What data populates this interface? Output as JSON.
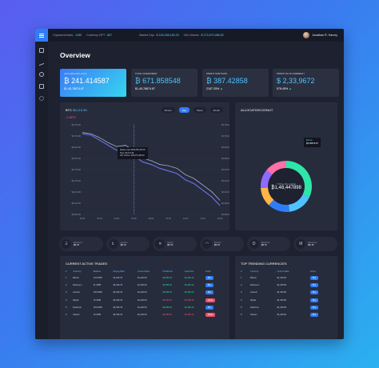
{
  "topbar": {
    "cryptocurrencies_label": "Crytocurrencies",
    "cryptocurrencies_value": "1280",
    "currency_label": "Currecny OPT",
    "currency_value": "857",
    "market_cap_label": "Market Cap",
    "market_cap_value": "$ 159,458,165.25",
    "volume_label": "24h Volume",
    "volume_value": "$ 272,679,486.50",
    "user_name": "Jonathan R. Harvey"
  },
  "sidebar": {
    "icons": [
      "dashboard-icon",
      "chart-icon",
      "pie-icon",
      "wallet-icon",
      "settings-icon"
    ]
  },
  "page": {
    "title": "Overview"
  },
  "cards": [
    {
      "label": "AVAILABLE BALANCE",
      "value": "₿ 241.414587",
      "sub": "$1,45,78874.87"
    },
    {
      "label": "TOTAL INVESTMENT",
      "value": "₿ 671.858548",
      "sub": "$1,45,78874.87"
    },
    {
      "label": "PROFIT IN BITCOIN",
      "value": "₿ 387.42858",
      "sub": "2187.25%"
    },
    {
      "label": "PROFIT IN US CURRENCY",
      "value": "$ 2,33,9672",
      "sub": "578.45%"
    }
  ],
  "btc_panel": {
    "coin": "BTC",
    "price": "$6,115.38",
    "change": "-2.487%",
    "tabs": [
      "Minute",
      "Day",
      "Week",
      "Month"
    ],
    "active_tab": "Day",
    "tooltip": {
      "l1": "Market Cap: $158,859,165.45",
      "l2": "Price: $6,115.38",
      "l3": "24h Volume: $35,679,486.50"
    },
    "y_ticks": [
      "$6,760.00",
      "$6,700.00",
      "$6,540.00",
      "$6,450.00",
      "$6,375.00",
      "$6,276.00",
      "$6,210.00",
      "$6,150.00",
      "$6,090.00"
    ],
    "x_ticks": [
      "00:00",
      "01:00",
      "02:00",
      "03:00",
      "04:00",
      "05:00",
      "06:00",
      "07:00",
      "08:00",
      "09:00",
      "10:00",
      "11:00",
      "12:00",
      "13:00",
      "14:00",
      "15:00",
      "16:00"
    ]
  },
  "chart_data": {
    "type": "line",
    "title": "BTC",
    "x": [
      "00:00",
      "01:00",
      "02:00",
      "03:00",
      "04:00",
      "05:00",
      "06:00",
      "07:00",
      "08:00",
      "09:00",
      "10:00",
      "11:00",
      "12:00",
      "13:00",
      "14:00",
      "15:00",
      "16:00"
    ],
    "series": [
      {
        "values": [
          6690,
          6680,
          6640,
          6600,
          6560,
          6580,
          6520,
          6470,
          6450,
          6420,
          6400,
          6380,
          6330,
          6300,
          6250,
          6200,
          6130
        ]
      },
      {
        "values": [
          6700,
          6690,
          6660,
          6620,
          6590,
          6600,
          6560,
          6500,
          6480,
          6450,
          6440,
          6420,
          6370,
          6340,
          6290,
          6240,
          6170
        ]
      }
    ],
    "ylim": [
      6060,
      6760
    ]
  },
  "donut": {
    "title": "ALLOCATION DONUT",
    "center_label": "TOTAL BALANCE",
    "center_value": "₿1,48,447898",
    "badge_coin": "Bitcoin",
    "badge_value": "₿3,58876.87",
    "segments": [
      {
        "name": "Bitcoin",
        "value": 32,
        "color": "#2ee6a8"
      },
      {
        "name": "Ethereum",
        "value": 16,
        "color": "#4fc3ff"
      },
      {
        "name": "Litecoin",
        "value": 14,
        "color": "#2f7df6"
      },
      {
        "name": "Ripple",
        "value": 12,
        "color": "#ffb547"
      },
      {
        "name": "Dashcoin",
        "value": 12,
        "color": "#8e6bff"
      },
      {
        "name": "Siacoin",
        "value": 14,
        "color": "#ff6fa8"
      }
    ]
  },
  "coins": [
    {
      "icon": "Ξ",
      "name": "Ethereum",
      "value": "₿2.76"
    },
    {
      "icon": "Ł",
      "name": "Litecoin",
      "value": "₿2.76"
    },
    {
      "icon": "✕",
      "name": "Ripple",
      "value": "₿2.76"
    },
    {
      "icon": "◠",
      "name": "Siacoin",
      "value": "₿2.76"
    },
    {
      "icon": "D",
      "name": "Dashcoin",
      "value": "₿2.76"
    },
    {
      "icon": "M",
      "name": "Ethereum",
      "value": "₿2.76"
    }
  ],
  "trades": {
    "title": "CURRENT ACTIVE TRADES",
    "headers": [
      "#",
      "Currency",
      "Balance",
      "Buying Rate",
      "Current Rate",
      "Profit/Loss",
      "Last Price",
      "Action"
    ],
    "rows": [
      [
        "1",
        "Bitcoin",
        "124.4558",
        "$1,546.78",
        "$1,246.50",
        "$2,456.12",
        "$1,245.14",
        "Buy"
      ],
      [
        "2",
        "Ethereum",
        "31.4558",
        "$1,546.78",
        "$1,246.50",
        "$2,456.12",
        "$1,245.14",
        "Buy"
      ],
      [
        "3",
        "Litecoin",
        "245.4558",
        "$1,546.78",
        "$1,246.50",
        "$2,456.12",
        "$1,245.14",
        "Buy"
      ],
      [
        "4",
        "Ripple",
        "12.4558",
        "$1,546.78",
        "$1,246.50",
        "$2,456.12",
        "$1,245.14",
        "Close"
      ],
      [
        "5",
        "Dashcoin",
        "154.4558",
        "$1,546.78",
        "$1,246.50",
        "$2,456.12",
        "$1,245.14",
        "Buy"
      ],
      [
        "6",
        "Siacoin",
        "12.4558",
        "$1,546.78",
        "$1,246.50",
        "$2,456.12",
        "$1,245.14",
        "Close"
      ]
    ]
  },
  "trending": {
    "title": "TOP TRENDING CURRENCIES",
    "headers": [
      "#",
      "Currency",
      "Current Rate",
      "Action"
    ],
    "rows": [
      [
        "1",
        "Bitcoin",
        "$1,246.50",
        "Buy"
      ],
      [
        "2",
        "Ethereum",
        "$1,246.50",
        "Buy"
      ],
      [
        "3",
        "Litecoin",
        "$1,246.50",
        "Buy"
      ],
      [
        "4",
        "Ripple",
        "$1,246.50",
        "Buy"
      ],
      [
        "5",
        "Dashcoin",
        "$1,246.50",
        "Buy"
      ],
      [
        "6",
        "Siacoin",
        "$1,246.50",
        "Buy"
      ]
    ]
  }
}
